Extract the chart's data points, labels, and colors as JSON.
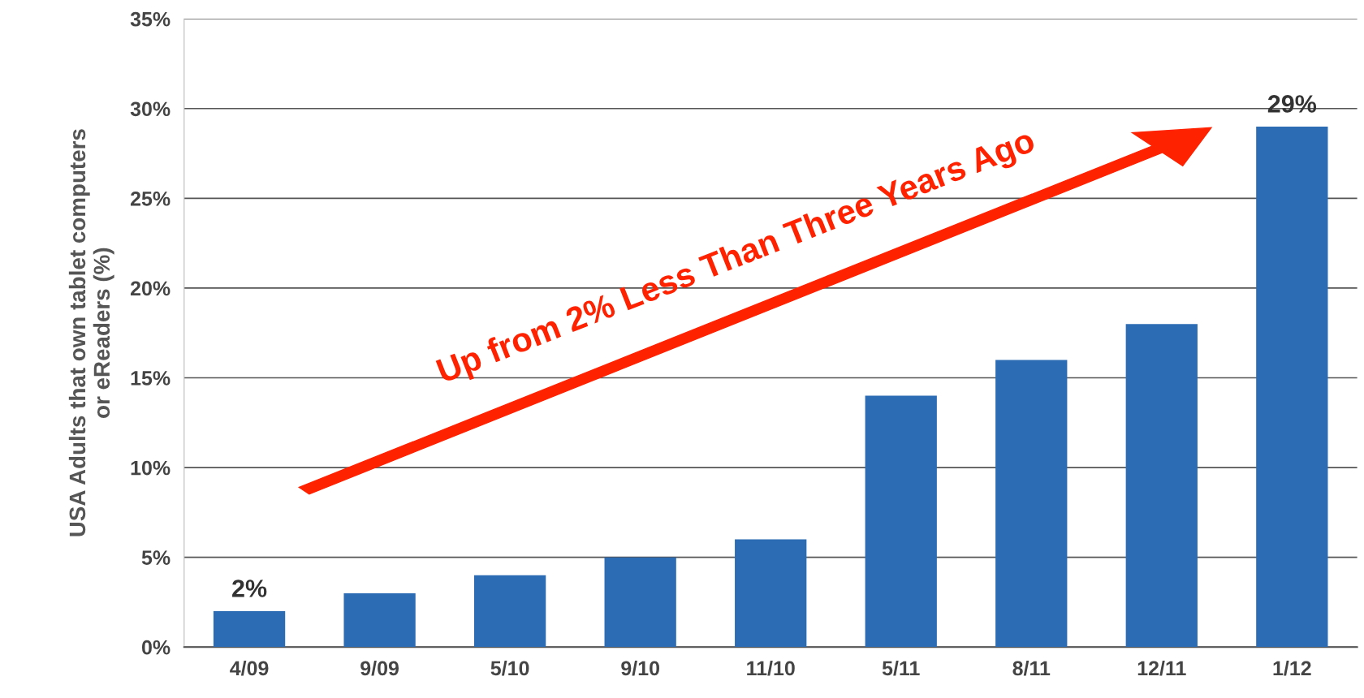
{
  "chart_data": {
    "type": "bar",
    "ylabel": "USA Adults that own tablet computers\nor eReaders (%)",
    "categories": [
      "4/09",
      "9/09",
      "5/10",
      "9/10",
      "11/10",
      "5/11",
      "8/11",
      "12/11",
      "1/12"
    ],
    "values": [
      2,
      3,
      4,
      5,
      6,
      14,
      16,
      18,
      29
    ],
    "value_labels": [
      "2%",
      null,
      null,
      null,
      null,
      null,
      null,
      null,
      "29%"
    ],
    "color": "#2c6cb4",
    "ylim": [
      0,
      35
    ],
    "yticks": [
      {
        "value": 0,
        "label": "0%"
      },
      {
        "value": 5,
        "label": "5%"
      },
      {
        "value": 10,
        "label": "10%"
      },
      {
        "value": 15,
        "label": "15%"
      },
      {
        "value": 20,
        "label": "20%"
      },
      {
        "value": 25,
        "label": "25%"
      },
      {
        "value": 30,
        "label": "30%"
      },
      {
        "value": 35,
        "label": "35%"
      }
    ],
    "grid": "y",
    "annotations": [
      "Up from 2% Less Than Three Years Ago"
    ]
  }
}
